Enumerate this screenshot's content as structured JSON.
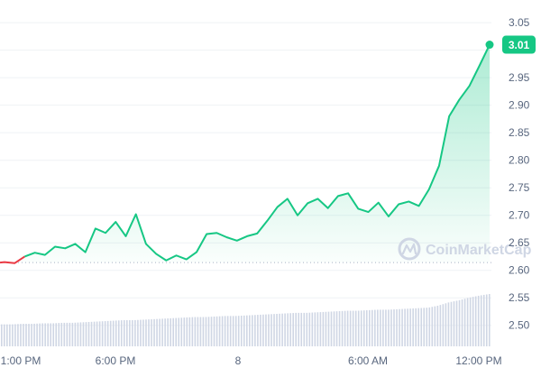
{
  "chart_data": {
    "type": "area",
    "colors": {
      "line_up": "#16c784",
      "line_down": "#ea3943",
      "fill_top": "#16c784",
      "volume": "#cfd6e4",
      "grid": "#eff2f5",
      "baseline": "#a6b0c3",
      "text": "#58667e"
    },
    "ylim": [
      2.475,
      3.065
    ],
    "yticks": [
      "3.05",
      "3.00",
      "2.95",
      "2.90",
      "2.85",
      "2.80",
      "2.75",
      "2.70",
      "2.65",
      "2.60",
      "2.55",
      "2.50"
    ],
    "xticks": [
      "1:00 PM",
      "6:00 PM",
      "8",
      "6:00 AM",
      "12:00 PM"
    ],
    "baseline_value": 2.614,
    "last_value": 3.01,
    "last_label": "3.01",
    "watermark": "CoinMarketCap",
    "x_hours": [
      0,
      0.5,
      1,
      1.5,
      2,
      2.5,
      3,
      3.5,
      4,
      4.5,
      5,
      5.5,
      6,
      6.5,
      7,
      7.5,
      8,
      8.5,
      9,
      9.5,
      10,
      10.5,
      11,
      11.5,
      12,
      12.5,
      13,
      13.5,
      14,
      14.5,
      15,
      15.5,
      16,
      16.5,
      17,
      17.5,
      18,
      18.5,
      19,
      19.5,
      20,
      20.5,
      21,
      21.5,
      22,
      22.5,
      23,
      23.5,
      24
    ],
    "price": [
      2.615,
      2.613,
      2.625,
      2.632,
      2.628,
      2.643,
      2.64,
      2.648,
      2.633,
      2.676,
      2.668,
      2.688,
      2.662,
      2.702,
      2.648,
      2.63,
      2.618,
      2.627,
      2.62,
      2.633,
      2.666,
      2.668,
      2.66,
      2.654,
      2.662,
      2.667,
      2.69,
      2.715,
      2.73,
      2.7,
      2.722,
      2.73,
      2.713,
      2.735,
      2.74,
      2.712,
      2.706,
      2.723,
      2.698,
      2.72,
      2.725,
      2.717,
      2.747,
      2.79,
      2.88,
      2.91,
      2.935,
      2.972,
      3.01
    ],
    "volume_relative": [
      0.42,
      0.42,
      0.43,
      0.43,
      0.44,
      0.44,
      0.45,
      0.45,
      0.46,
      0.47,
      0.48,
      0.49,
      0.5,
      0.5,
      0.51,
      0.52,
      0.53,
      0.54,
      0.55,
      0.56,
      0.56,
      0.57,
      0.58,
      0.58,
      0.59,
      0.6,
      0.61,
      0.62,
      0.63,
      0.64,
      0.64,
      0.65,
      0.66,
      0.67,
      0.68,
      0.68,
      0.69,
      0.7,
      0.7,
      0.71,
      0.72,
      0.73,
      0.74,
      0.78,
      0.84,
      0.88,
      0.93,
      0.97,
      1.0
    ]
  }
}
